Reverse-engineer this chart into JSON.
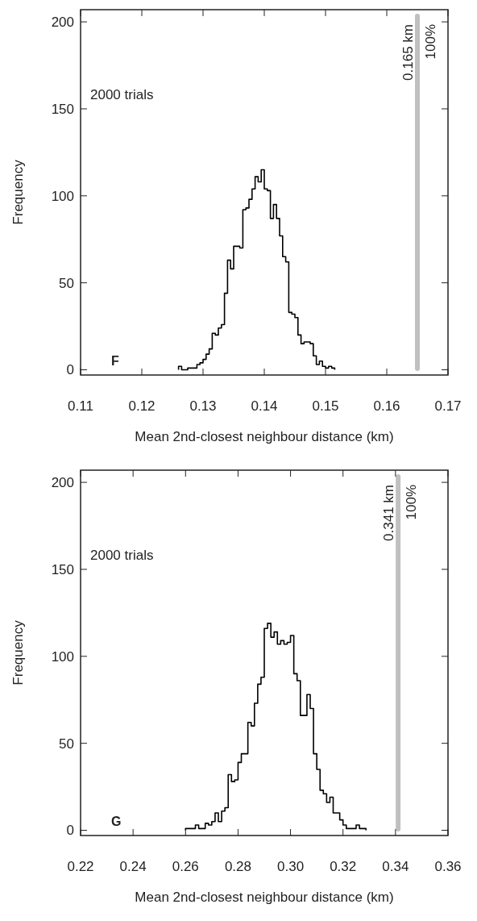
{
  "chart_data": [
    {
      "type": "histogram",
      "xlabel": "Mean 2nd-closest neighbour distance (km)",
      "ylabel": "Frequency",
      "bins": [
        0.126,
        0.1265,
        0.127,
        0.1275,
        0.128,
        0.1285,
        0.129,
        0.1295,
        0.13,
        0.1305,
        0.131,
        0.1315,
        0.132,
        0.1325,
        0.133,
        0.1335,
        0.134,
        0.1345,
        0.135,
        0.1355,
        0.136,
        0.1365,
        0.137,
        0.1375,
        0.138,
        0.1385,
        0.139,
        0.1395,
        0.14,
        0.1405,
        0.141,
        0.1415,
        0.142,
        0.1425,
        0.143,
        0.1435,
        0.144,
        0.1445,
        0.145,
        0.1455,
        0.146,
        0.1465,
        0.147,
        0.1475,
        0.148,
        0.1485,
        0.149,
        0.1495,
        0.15,
        0.1505,
        0.151,
        0.1515
      ],
      "values": [
        2,
        0,
        0,
        1,
        1,
        1,
        3,
        4,
        6,
        9,
        12,
        21,
        20,
        24,
        26,
        44,
        63,
        58,
        71,
        71,
        70,
        92,
        93,
        98,
        104,
        111,
        108,
        115,
        104,
        103,
        87,
        95,
        87,
        77,
        65,
        62,
        33,
        32,
        30,
        20,
        15,
        16,
        16,
        15,
        8,
        3,
        5,
        2,
        1,
        2,
        1
      ],
      "color": "#000000",
      "xlim": [
        0.11,
        0.17
      ],
      "ylim": [
        -3,
        207
      ],
      "xticks": [
        0.11,
        0.12,
        0.13,
        0.14,
        0.15,
        0.16,
        0.17
      ],
      "yticks": [
        0,
        50,
        100,
        150,
        200
      ],
      "ref_lines": [
        {
          "axis": "x",
          "value": 0.165,
          "label": "0.165 km",
          "color": "#c0c0c0"
        }
      ],
      "annotations": [
        "2000 trials",
        "100%",
        "F"
      ]
    },
    {
      "type": "histogram",
      "xlabel": "Mean 2nd-closest neighbour distance (km)",
      "ylabel": "Frequency",
      "bins": [
        0.26,
        0.26125,
        0.2625,
        0.26375,
        0.265,
        0.26625,
        0.2675,
        0.26875,
        0.27,
        0.27125,
        0.2725,
        0.27375,
        0.275,
        0.27625,
        0.2775,
        0.27875,
        0.28,
        0.28125,
        0.2825,
        0.28375,
        0.285,
        0.28625,
        0.2875,
        0.28875,
        0.29,
        0.29125,
        0.2925,
        0.29375,
        0.295,
        0.29625,
        0.2975,
        0.29875,
        0.3,
        0.30125,
        0.3025,
        0.30375,
        0.305,
        0.30625,
        0.3075,
        0.30875,
        0.31,
        0.31125,
        0.3125,
        0.31375,
        0.315,
        0.31625,
        0.3175,
        0.31875,
        0.32,
        0.32125,
        0.3225,
        0.32375,
        0.325,
        0.32625,
        0.3275,
        0.32875
      ],
      "values": [
        1,
        1,
        1,
        3,
        1,
        1,
        4,
        3,
        5,
        10,
        5,
        11,
        13,
        32,
        28,
        29,
        39,
        44,
        44,
        62,
        60,
        73,
        84,
        88,
        116,
        119,
        111,
        114,
        107,
        109,
        107,
        108,
        112,
        90,
        86,
        66,
        66,
        78,
        70,
        44,
        35,
        23,
        21,
        16,
        19,
        10,
        10,
        6,
        3,
        1,
        1,
        1,
        3,
        1,
        1
      ],
      "color": "#000000",
      "xlim": [
        0.22,
        0.36
      ],
      "ylim": [
        -3,
        207
      ],
      "xticks": [
        {
          "value": 0.22,
          "label": "0.22"
        },
        {
          "value": 0.24,
          "label": "0.24"
        },
        {
          "value": 0.26,
          "label": "0.26"
        },
        {
          "value": 0.28,
          "label": "0.28"
        },
        {
          "value": 0.3,
          "label": "0.30"
        },
        {
          "value": 0.32,
          "label": "0.32"
        },
        {
          "value": 0.34,
          "label": "0.34"
        },
        {
          "value": 0.36,
          "label": "0.36"
        }
      ],
      "yticks": [
        0,
        50,
        100,
        150,
        200
      ],
      "ref_lines": [
        {
          "axis": "x",
          "value": 0.341,
          "label": "0.341 km",
          "color": "#c0c0c0"
        }
      ],
      "annotations": [
        "2000 trials",
        "100%",
        "G"
      ]
    }
  ]
}
